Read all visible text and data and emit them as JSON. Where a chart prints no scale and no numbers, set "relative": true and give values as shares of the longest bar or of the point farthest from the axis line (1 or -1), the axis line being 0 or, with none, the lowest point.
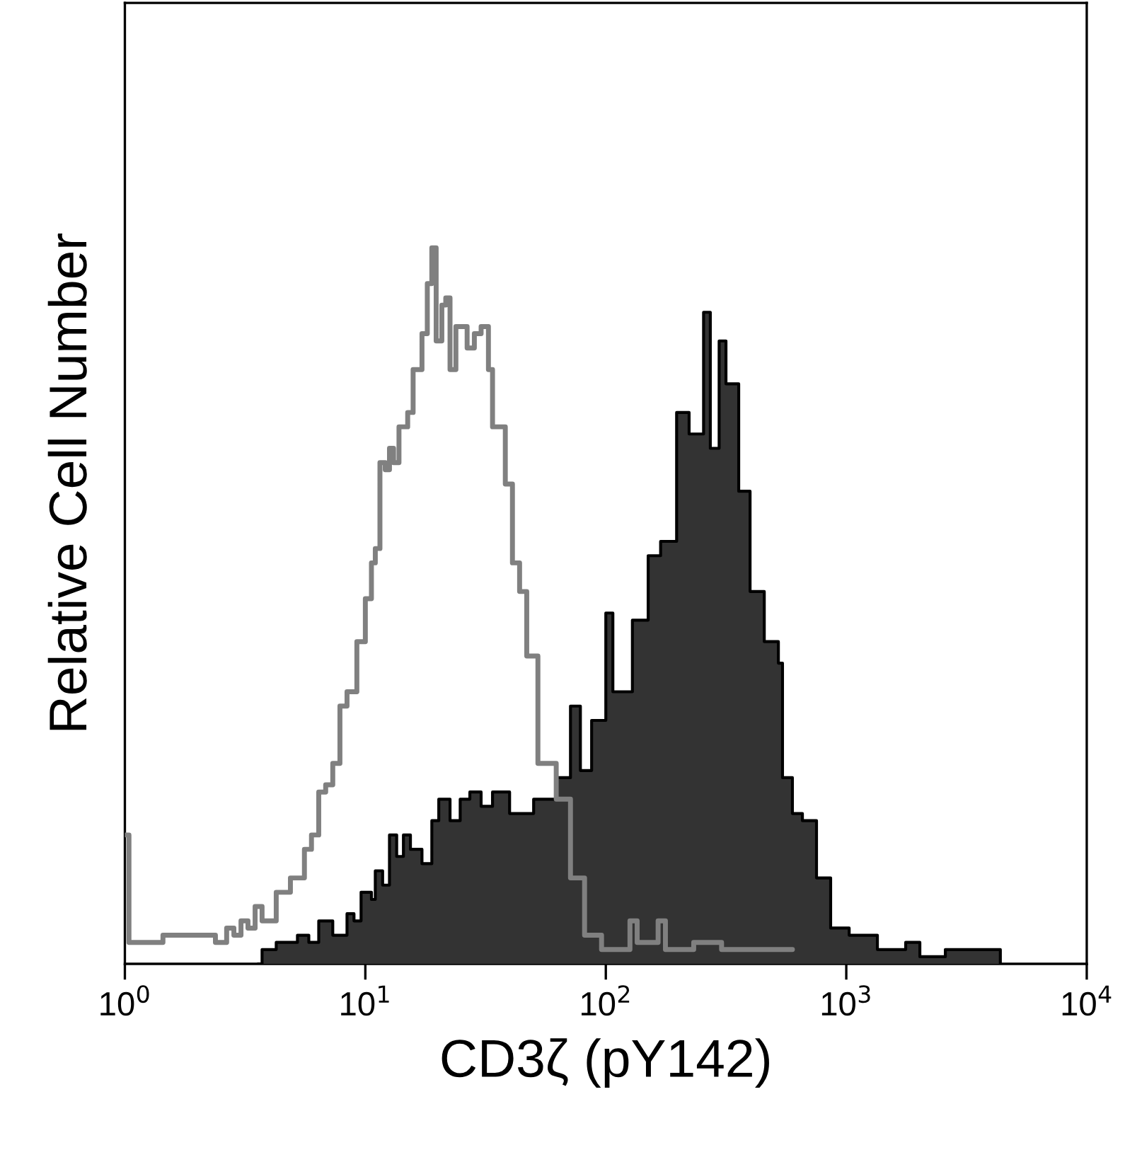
{
  "chart_data": {
    "type": "step",
    "xlabel": "CD3ζ (pY142)",
    "ylabel": "Relative Cell Number",
    "relative": true,
    "log": "x",
    "grid": false,
    "xlim": [
      1,
      10000
    ],
    "xticks": [
      {
        "value": 1,
        "label": "10$^{0}$"
      },
      {
        "value": 10,
        "label": "10$^{1}$"
      },
      {
        "value": 100,
        "label": "10$^{2}$"
      },
      {
        "value": 1000,
        "label": "10$^{3}$"
      },
      {
        "value": 10000,
        "label": "10$^{4}$"
      }
    ],
    "series": [
      {
        "color": "#808080",
        "x": [
          1.0,
          1.04,
          1.35,
          1.44,
          1.89,
          2.17,
          2.32,
          2.38,
          2.48,
          2.65,
          2.84,
          3.04,
          3.25,
          3.48,
          3.72,
          4.26,
          4.56,
          4.88,
          5.22,
          5.58,
          5.97,
          6.4,
          6.84,
          7.32,
          7.84,
          8.39,
          9.22,
          10,
          10.6,
          11.0,
          11.5,
          12.1,
          12.6,
          13.1,
          13.8,
          15.0,
          15.8,
          17.2,
          18.1,
          18.9,
          19.7,
          20.8,
          21.6,
          22.5,
          23.8,
          24.8,
          26.5,
          28.4,
          30.3,
          32.5,
          33.8,
          38.2,
          40.9,
          43.8,
          46.9,
          52.2,
          62.2,
          71.3,
          81.6,
          96,
          126,
          135,
          165,
          177,
          232,
          303,
          456,
          597
        ],
        "values": [
          0.18,
          0.03,
          0.03,
          0.04,
          0.04,
          0.04,
          0.04,
          0.03,
          0.03,
          0.05,
          0.04,
          0.06,
          0.05,
          0.08,
          0.06,
          0.1,
          0.1,
          0.12,
          0.12,
          0.16,
          0.18,
          0.24,
          0.25,
          0.28,
          0.36,
          0.38,
          0.45,
          0.51,
          0.56,
          0.58,
          0.7,
          0.69,
          0.72,
          0.7,
          0.75,
          0.77,
          0.83,
          0.88,
          0.95,
          1.0,
          0.87,
          0.92,
          0.93,
          0.83,
          0.89,
          0.89,
          0.86,
          0.88,
          0.89,
          0.83,
          0.75,
          0.67,
          0.56,
          0.52,
          0.43,
          0.28,
          0.23,
          0.12,
          0.04,
          0.02,
          0.06,
          0.03,
          0.06,
          0.02,
          0.03,
          0.02,
          0.02,
          0.02
        ]
      },
      {
        "type": "area",
        "color": "#333333",
        "x": [
          3.6,
          3.72,
          4.26,
          4.56,
          5.22,
          5.82,
          6.4,
          7.32,
          8.39,
          8.97,
          9.6,
          10.6,
          11.0,
          11.8,
          12.6,
          13.5,
          14.4,
          15.4,
          17.2,
          18.9,
          20.2,
          22.5,
          24.8,
          27.2,
          30.3,
          33.8,
          37.2,
          39.8,
          50.1,
          62.2,
          71.3,
          78.4,
          87.3,
          100,
          107,
          129,
          150,
          169,
          197,
          222,
          255,
          272,
          296,
          316,
          357,
          398,
          456,
          522,
          543,
          597,
          657,
          752,
          861,
          1028,
          1347,
          1766,
          2023,
          2582,
          4090,
          4372
        ],
        "values": [
          0,
          0.02,
          0.03,
          0.03,
          0.04,
          0.03,
          0.06,
          0.04,
          0.07,
          0.06,
          0.1,
          0.09,
          0.13,
          0.11,
          0.18,
          0.15,
          0.18,
          0.16,
          0.14,
          0.2,
          0.23,
          0.2,
          0.23,
          0.24,
          0.22,
          0.24,
          0.24,
          0.21,
          0.23,
          0.26,
          0.36,
          0.27,
          0.34,
          0.49,
          0.38,
          0.48,
          0.57,
          0.59,
          0.77,
          0.74,
          0.91,
          0.72,
          0.87,
          0.81,
          0.66,
          0.52,
          0.45,
          0.42,
          0.26,
          0.21,
          0.2,
          0.12,
          0.05,
          0.04,
          0.02,
          0.03,
          0.01,
          0.02,
          0.02,
          0
        ]
      }
    ]
  }
}
